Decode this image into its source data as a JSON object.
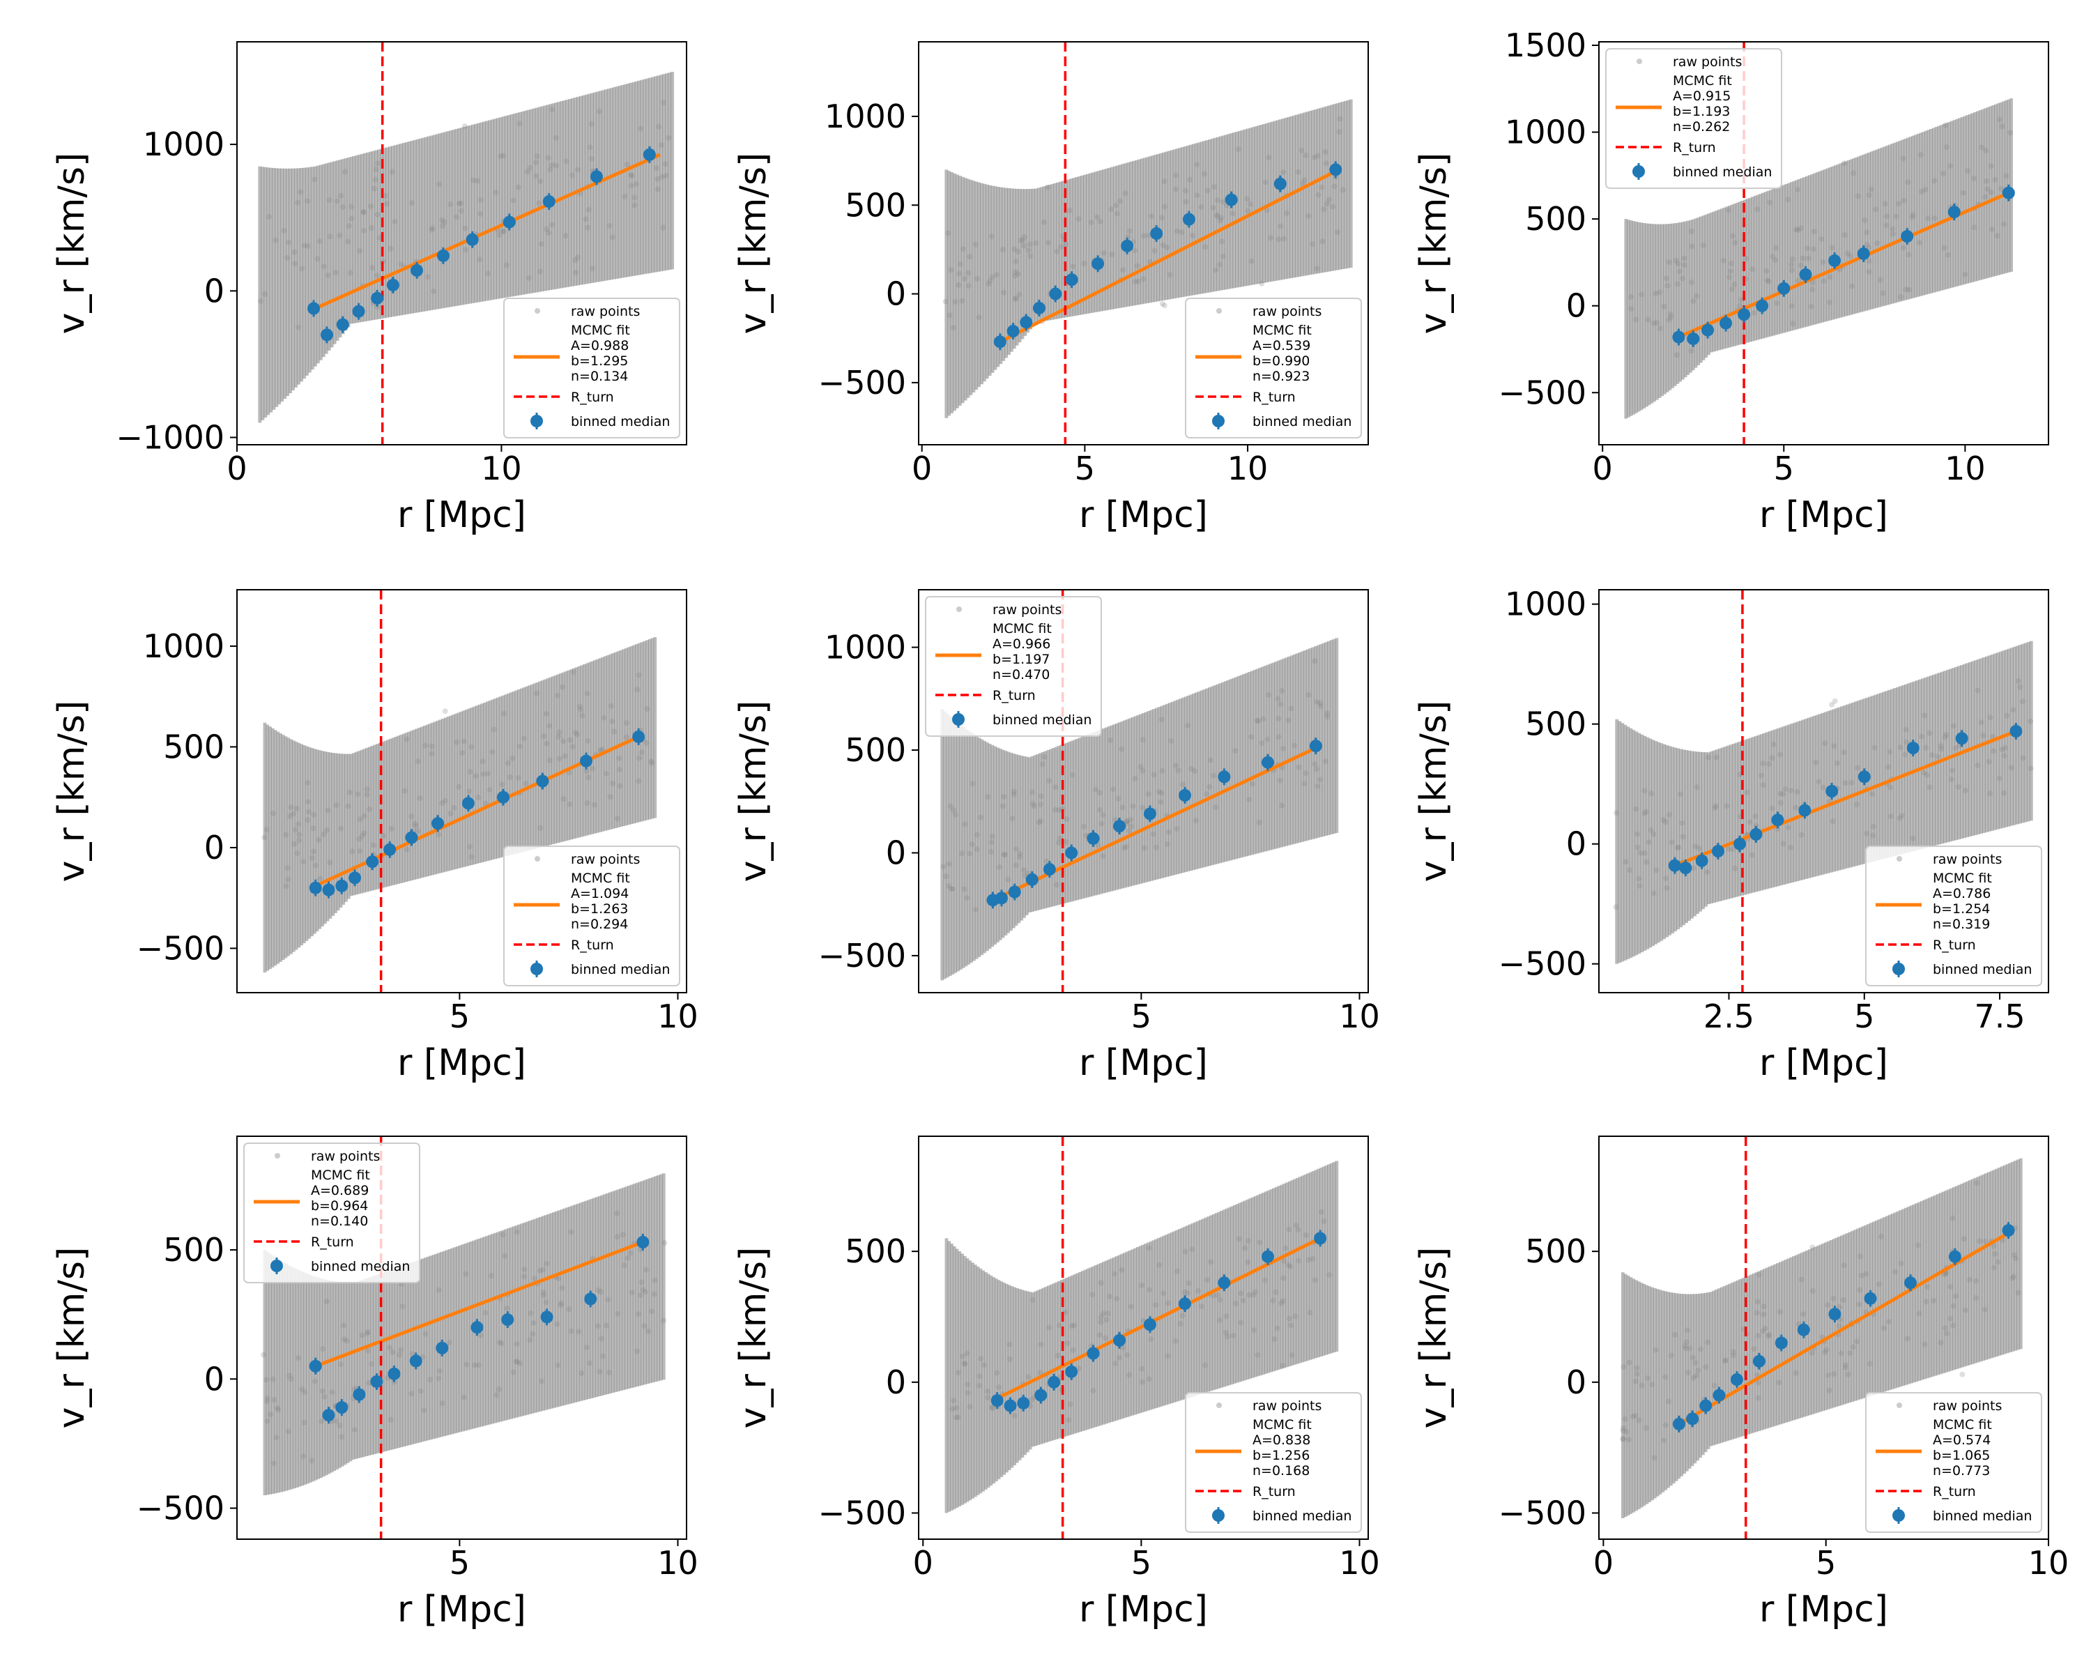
{
  "figure": {
    "layout": "3x3 grid",
    "colors": {
      "raw": "#808080",
      "fit": "#ff7f0e",
      "rturn": "#ff0000",
      "median": "#1f77b4"
    }
  },
  "chart_data": [
    {
      "type": "scatter",
      "xlabel": "r [Mpc]",
      "ylabel": "v_r [km/s]",
      "xlim": [
        0,
        17
      ],
      "ylim": [
        -1050,
        1700
      ],
      "xticks": [
        0,
        10
      ],
      "yticks": [
        -1000,
        0,
        1000
      ],
      "r_turn": 5.5,
      "legend_loc": "lower right",
      "fit": {
        "A": "0.988",
        "b": "1.295",
        "n": "0.134",
        "x_range": [
          2.95,
          16.0
        ]
      },
      "medians": [
        [
          2.9,
          -120
        ],
        [
          3.4,
          -300
        ],
        [
          4.0,
          -230
        ],
        [
          4.6,
          -140
        ],
        [
          5.3,
          -50
        ],
        [
          5.9,
          40
        ],
        [
          6.8,
          140
        ],
        [
          7.8,
          240
        ],
        [
          8.9,
          350
        ],
        [
          10.3,
          470
        ],
        [
          11.8,
          610
        ],
        [
          13.6,
          780
        ],
        [
          15.6,
          930
        ]
      ],
      "raw_shape": {
        "x": [
          0.8,
          16.5
        ],
        "halo": {
          "lo": -900,
          "hi": 850
        },
        "ymin": [
          -330,
          150
        ],
        "ymax": [
          750,
          1500
        ]
      }
    },
    {
      "type": "scatter",
      "xlabel": "r [Mpc]",
      "ylabel": "v_r [km/s]",
      "xlim": [
        -0.1,
        13.7
      ],
      "ylim": [
        -850,
        1420
      ],
      "xticks": [
        0,
        5,
        10
      ],
      "yticks": [
        -500,
        0,
        500,
        1000
      ],
      "r_turn": 4.4,
      "legend_loc": "lower right",
      "fit": {
        "A": "0.539",
        "b": "0.990",
        "n": "0.923",
        "x_range": [
          2.4,
          12.8
        ]
      },
      "medians": [
        [
          2.4,
          -270
        ],
        [
          2.8,
          -210
        ],
        [
          3.2,
          -160
        ],
        [
          3.6,
          -80
        ],
        [
          4.1,
          0
        ],
        [
          4.6,
          80
        ],
        [
          5.4,
          170
        ],
        [
          6.3,
          270
        ],
        [
          7.2,
          340
        ],
        [
          8.2,
          420
        ],
        [
          9.5,
          530
        ],
        [
          11.0,
          620
        ],
        [
          12.7,
          700
        ]
      ],
      "raw_shape": {
        "x": [
          0.7,
          13.2
        ],
        "halo": {
          "lo": -700,
          "hi": 700
        },
        "ymin": [
          -250,
          150
        ],
        "ymax": [
          450,
          1100
        ]
      }
    },
    {
      "type": "scatter",
      "xlabel": "r [Mpc]",
      "ylabel": "v_r [km/s]",
      "xlim": [
        -0.1,
        12.3
      ],
      "ylim": [
        -800,
        1520
      ],
      "xticks": [
        0,
        5,
        10
      ],
      "yticks": [
        -500,
        0,
        500,
        1000,
        1500
      ],
      "r_turn": 3.9,
      "legend_loc": "upper left",
      "fit": {
        "A": "0.915",
        "b": "1.193",
        "n": "0.262",
        "x_range": [
          2.1,
          11.2
        ]
      },
      "medians": [
        [
          2.1,
          -180
        ],
        [
          2.5,
          -190
        ],
        [
          2.9,
          -140
        ],
        [
          3.4,
          -100
        ],
        [
          3.9,
          -50
        ],
        [
          4.4,
          0
        ],
        [
          5.0,
          100
        ],
        [
          5.6,
          180
        ],
        [
          6.4,
          260
        ],
        [
          7.2,
          300
        ],
        [
          8.4,
          400
        ],
        [
          9.7,
          540
        ],
        [
          11.2,
          650
        ]
      ],
      "raw_shape": {
        "x": [
          0.6,
          11.3
        ],
        "halo": {
          "lo": -650,
          "hi": 500
        },
        "ymin": [
          -400,
          200
        ],
        "ymax": [
          350,
          1200
        ]
      }
    },
    {
      "type": "scatter",
      "xlabel": "r [Mpc]",
      "ylabel": "v_r [km/s]",
      "xlim": [
        -0.1,
        10.2
      ],
      "ylim": [
        -720,
        1280
      ],
      "xticks": [
        5,
        10
      ],
      "yticks": [
        -500,
        0,
        500,
        1000
      ],
      "r_turn": 3.2,
      "legend_loc": "lower right",
      "fit": {
        "A": "1.094",
        "b": "1.263",
        "n": "0.294",
        "x_range": [
          1.6,
          9.1
        ]
      },
      "medians": [
        [
          1.7,
          -200
        ],
        [
          2.0,
          -210
        ],
        [
          2.3,
          -190
        ],
        [
          2.6,
          -150
        ],
        [
          3.0,
          -70
        ],
        [
          3.4,
          -10
        ],
        [
          3.9,
          50
        ],
        [
          4.5,
          120
        ],
        [
          5.2,
          220
        ],
        [
          6.0,
          250
        ],
        [
          6.9,
          330
        ],
        [
          7.9,
          430
        ],
        [
          9.1,
          550
        ]
      ],
      "raw_shape": {
        "x": [
          0.5,
          9.5
        ],
        "halo": {
          "lo": -620,
          "hi": 620
        },
        "ymin": [
          -350,
          150
        ],
        "ymax": [
          300,
          1050
        ]
      }
    },
    {
      "type": "scatter",
      "xlabel": "r [Mpc]",
      "ylabel": "v_r [km/s]",
      "xlim": [
        -0.1,
        10.2
      ],
      "ylim": [
        -680,
        1280
      ],
      "xticks": [
        5,
        10
      ],
      "yticks": [
        -500,
        0,
        500,
        1000
      ],
      "r_turn": 3.2,
      "legend_loc": "upper left",
      "fit": {
        "A": "0.966",
        "b": "1.197",
        "n": "0.470",
        "x_range": [
          1.6,
          9.1
        ]
      },
      "medians": [
        [
          1.6,
          -230
        ],
        [
          1.8,
          -220
        ],
        [
          2.1,
          -190
        ],
        [
          2.5,
          -130
        ],
        [
          2.9,
          -80
        ],
        [
          3.4,
          0
        ],
        [
          3.9,
          70
        ],
        [
          4.5,
          130
        ],
        [
          5.2,
          190
        ],
        [
          6.0,
          280
        ],
        [
          6.9,
          370
        ],
        [
          7.9,
          440
        ],
        [
          9.0,
          520
        ]
      ],
      "raw_shape": {
        "x": [
          0.4,
          9.5
        ],
        "halo": {
          "lo": -620,
          "hi": 700
        },
        "ymin": [
          -400,
          100
        ],
        "ymax": [
          300,
          1050
        ]
      }
    },
    {
      "type": "scatter",
      "xlabel": "r [Mpc]",
      "ylabel": "v_r [km/s]",
      "xlim": [
        0.1,
        8.4
      ],
      "ylim": [
        -620,
        1060
      ],
      "xticks": [
        2.5,
        5.0,
        7.5
      ],
      "yticks": [
        -500,
        0,
        500,
        1000
      ],
      "r_turn": 2.75,
      "legend_loc": "lower right",
      "fit": {
        "A": "0.786",
        "b": "1.254",
        "n": "0.319",
        "x_range": [
          1.5,
          7.8
        ]
      },
      "medians": [
        [
          1.5,
          -90
        ],
        [
          1.7,
          -100
        ],
        [
          2.0,
          -70
        ],
        [
          2.3,
          -30
        ],
        [
          2.7,
          0
        ],
        [
          3.0,
          40
        ],
        [
          3.4,
          100
        ],
        [
          3.9,
          140
        ],
        [
          4.4,
          220
        ],
        [
          5.0,
          280
        ],
        [
          5.9,
          400
        ],
        [
          6.8,
          440
        ],
        [
          7.8,
          470
        ]
      ],
      "raw_shape": {
        "x": [
          0.4,
          8.1
        ],
        "halo": {
          "lo": -500,
          "hi": 520
        },
        "ymin": [
          -350,
          100
        ],
        "ymax": [
          250,
          850
        ]
      }
    },
    {
      "type": "scatter",
      "xlabel": "r [Mpc]",
      "ylabel": "v_r [km/s]",
      "xlim": [
        -0.1,
        10.2
      ],
      "ylim": [
        -620,
        940
      ],
      "xticks": [
        5,
        10
      ],
      "yticks": [
        -500,
        0,
        500
      ],
      "r_turn": 3.2,
      "legend_loc": "upper left",
      "fit": {
        "A": "0.689",
        "b": "0.964",
        "n": "0.140",
        "x_range": [
          1.7,
          9.2
        ]
      },
      "medians": [
        [
          1.7,
          50
        ],
        [
          2.0,
          -140
        ],
        [
          2.3,
          -110
        ],
        [
          2.7,
          -60
        ],
        [
          3.1,
          -10
        ],
        [
          3.5,
          20
        ],
        [
          4.0,
          70
        ],
        [
          4.6,
          120
        ],
        [
          5.4,
          200
        ],
        [
          6.1,
          230
        ],
        [
          7.0,
          240
        ],
        [
          8.0,
          310
        ],
        [
          9.2,
          530
        ]
      ],
      "raw_shape": {
        "x": [
          0.5,
          9.7
        ],
        "halo": {
          "lo": -450,
          "hi": 500
        },
        "ymin": [
          -400,
          0
        ],
        "ymax": [
          250,
          800
        ]
      }
    },
    {
      "type": "scatter",
      "xlabel": "r [Mpc]",
      "ylabel": "v_r [km/s]",
      "xlim": [
        -0.1,
        10.2
      ],
      "ylim": [
        -600,
        940
      ],
      "xticks": [
        0,
        5,
        10
      ],
      "yticks": [
        -500,
        0,
        500
      ],
      "r_turn": 3.2,
      "legend_loc": "lower right",
      "fit": {
        "A": "0.838",
        "b": "1.256",
        "n": "0.168",
        "x_range": [
          1.6,
          9.1
        ]
      },
      "medians": [
        [
          1.7,
          -70
        ],
        [
          2.0,
          -90
        ],
        [
          2.3,
          -80
        ],
        [
          2.7,
          -50
        ],
        [
          3.0,
          0
        ],
        [
          3.4,
          40
        ],
        [
          3.9,
          110
        ],
        [
          4.5,
          160
        ],
        [
          5.2,
          220
        ],
        [
          6.0,
          300
        ],
        [
          6.9,
          380
        ],
        [
          7.9,
          480
        ],
        [
          9.1,
          550
        ]
      ],
      "raw_shape": {
        "x": [
          0.5,
          9.5
        ],
        "halo": {
          "lo": -500,
          "hi": 550
        },
        "ymin": [
          -350,
          120
        ],
        "ymax": [
          200,
          850
        ]
      }
    },
    {
      "type": "scatter",
      "xlabel": "r [Mpc]",
      "ylabel": "v_r [km/s]",
      "xlim": [
        -0.1,
        10.0
      ],
      "ylim": [
        -600,
        940
      ],
      "xticks": [
        0,
        5,
        10
      ],
      "yticks": [
        -500,
        0,
        500
      ],
      "r_turn": 3.2,
      "legend_loc": "lower right",
      "fit": {
        "A": "0.574",
        "b": "1.065",
        "n": "0.773",
        "x_range": [
          1.7,
          9.2
        ]
      },
      "medians": [
        [
          1.7,
          -160
        ],
        [
          2.0,
          -140
        ],
        [
          2.3,
          -90
        ],
        [
          2.6,
          -50
        ],
        [
          3.0,
          10
        ],
        [
          3.5,
          80
        ],
        [
          4.0,
          150
        ],
        [
          4.5,
          200
        ],
        [
          5.2,
          260
        ],
        [
          6.0,
          320
        ],
        [
          6.9,
          380
        ],
        [
          7.9,
          480
        ],
        [
          9.1,
          580
        ]
      ],
      "raw_shape": {
        "x": [
          0.4,
          9.4
        ],
        "halo": {
          "lo": -520,
          "hi": 420
        },
        "ymin": [
          -350,
          130
        ],
        "ymax": [
          200,
          860
        ]
      }
    }
  ],
  "legend": {
    "raw": "raw points",
    "fit_title": "MCMC fit",
    "a_prefix": "A=",
    "b_prefix": "b=",
    "n_prefix": "n=",
    "rturn": "R_turn",
    "median": "binned median"
  }
}
